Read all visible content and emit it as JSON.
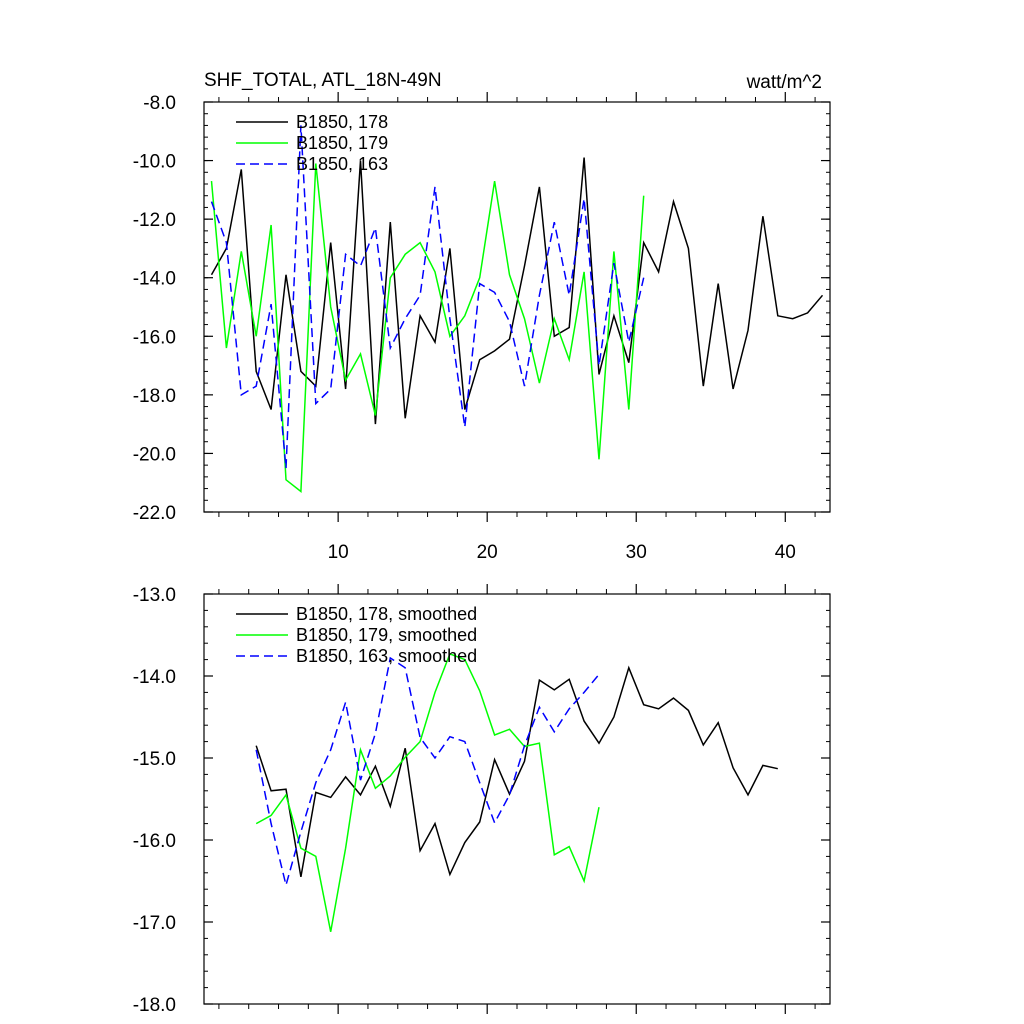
{
  "chart_data": [
    {
      "type": "line",
      "title": "SHF_TOTAL, ATL_18N-49N",
      "units": "watt/m^2",
      "xlim": [
        1,
        43
      ],
      "ylim": [
        -22,
        -8
      ],
      "yticks": [
        -8,
        -10,
        -12,
        -14,
        -16,
        -18,
        -20,
        -22
      ],
      "ytick_labels": [
        "-8.0",
        "-10.0",
        "-12.0",
        "-14.0",
        "-16.0",
        "-18.0",
        "-20.0",
        "-22.0"
      ],
      "xticks": [
        10,
        20,
        30,
        40
      ],
      "xtick_labels": [
        "10",
        "20",
        "30",
        "40"
      ],
      "legend_position": "top-left",
      "series": [
        {
          "name": "B1850, 178",
          "color": "#000000",
          "dash": "solid",
          "x": [
            1.5,
            2.5,
            3.5,
            4.5,
            5.5,
            6.5,
            7.5,
            8.5,
            9.5,
            10.5,
            11.5,
            12.5,
            13.5,
            14.5,
            15.5,
            16.5,
            17.5,
            18.5,
            19.5,
            20.5,
            21.5,
            22.5,
            23.5,
            24.5,
            25.5,
            26.5,
            27.5,
            28.5,
            29.5,
            30.5,
            31.5,
            32.5,
            33.5,
            34.5,
            35.5,
            36.5,
            37.5,
            38.5,
            39.5,
            40.5,
            41.5,
            42.5
          ],
          "values": [
            -13.9,
            -13.0,
            -10.3,
            -17.2,
            -18.5,
            -13.9,
            -17.2,
            -17.7,
            -12.8,
            -17.8,
            -10.0,
            -19.0,
            -12.1,
            -18.8,
            -15.3,
            -16.2,
            -13.0,
            -18.5,
            -16.8,
            -16.5,
            -16.1,
            -13.6,
            -10.9,
            -16.0,
            -15.7,
            -9.9,
            -17.3,
            -15.3,
            -16.9,
            -12.8,
            -13.8,
            -11.4,
            -13.0,
            -17.7,
            -14.2,
            -17.8,
            -15.8,
            -11.9,
            -15.3,
            -15.4,
            -15.2,
            -14.6
          ]
        },
        {
          "name": "B1850, 179",
          "color": "#00ff00",
          "dash": "solid",
          "x": [
            1.5,
            2.5,
            3.5,
            4.5,
            5.5,
            6.5,
            7.5,
            8.5,
            9.5,
            10.5,
            11.5,
            12.5,
            13.5,
            14.5,
            15.5,
            16.5,
            17.5,
            18.5,
            19.5,
            20.5,
            21.5,
            22.5,
            23.5,
            24.5,
            25.5,
            26.5,
            27.5,
            28.5,
            29.5,
            30.5
          ],
          "values": [
            -10.7,
            -16.4,
            -13.1,
            -16.0,
            -12.2,
            -20.9,
            -21.3,
            -10.1,
            -15.0,
            -17.5,
            -16.6,
            -18.7,
            -14.0,
            -13.2,
            -12.8,
            -13.8,
            -16.0,
            -15.3,
            -14.0,
            -10.7,
            -13.9,
            -15.4,
            -17.6,
            -15.4,
            -16.8,
            -13.8,
            -20.2,
            -13.1,
            -18.5,
            -11.2
          ]
        },
        {
          "name": "B1850, 163",
          "color": "#0000ff",
          "dash": "dashed",
          "x": [
            1.5,
            2.5,
            3.5,
            4.5,
            5.5,
            6.5,
            7.5,
            8.5,
            9.5,
            10.5,
            11.5,
            12.5,
            13.5,
            14.5,
            15.5,
            16.5,
            17.5,
            18.5,
            19.5,
            20.5,
            21.5,
            22.5,
            23.5,
            24.5,
            25.5,
            26.5,
            27.5,
            28.5,
            29.5,
            30.5
          ],
          "values": [
            -11.4,
            -12.8,
            -18.0,
            -17.7,
            -14.9,
            -20.5,
            -8.8,
            -18.3,
            -17.8,
            -13.2,
            -13.6,
            -12.3,
            -16.4,
            -15.4,
            -14.6,
            -10.9,
            -15.4,
            -19.1,
            -14.2,
            -14.5,
            -15.5,
            -17.7,
            -14.6,
            -12.1,
            -14.6,
            -11.3,
            -17.0,
            -13.5,
            -16.2,
            -14.0
          ]
        }
      ]
    },
    {
      "type": "line",
      "title": "",
      "ylim": [
        -18,
        -13
      ],
      "yticks": [
        -13,
        -14,
        -15,
        -16,
        -17,
        -18
      ],
      "ytick_labels": [
        "-13.0",
        "-14.0",
        "-15.0",
        "-16.0",
        "-17.0",
        "-18.0"
      ],
      "xlim": [
        1,
        43
      ],
      "xticks": [
        10,
        20,
        30,
        40
      ],
      "xtick_labels": [],
      "legend_position": "top-left",
      "series": [
        {
          "name": "B1850, 178, smoothed",
          "color": "#000000",
          "dash": "solid",
          "x": [
            4.5,
            5.5,
            6.5,
            7.5,
            8.5,
            9.5,
            10.5,
            11.5,
            12.5,
            13.5,
            14.5,
            15.5,
            16.5,
            17.5,
            18.5,
            19.5,
            20.5,
            21.5,
            22.5,
            23.5,
            24.5,
            25.5,
            26.5,
            27.5,
            28.5,
            29.5,
            30.5,
            31.5,
            32.5,
            33.5,
            34.5,
            35.5,
            36.5,
            37.5,
            38.5,
            39.5
          ],
          "values": [
            -14.85,
            -15.4,
            -15.38,
            -16.45,
            -15.42,
            -15.48,
            -15.23,
            -15.45,
            -15.1,
            -15.59,
            -14.88,
            -16.13,
            -15.8,
            -16.42,
            -16.03,
            -15.78,
            -15.02,
            -15.44,
            -15.04,
            -14.05,
            -14.17,
            -14.04,
            -14.55,
            -14.82,
            -14.5,
            -13.9,
            -14.35,
            -14.4,
            -14.27,
            -14.42,
            -14.84,
            -14.57,
            -15.12,
            -15.45,
            -15.09,
            -15.13
          ]
        },
        {
          "name": "B1850, 179, smoothed",
          "color": "#00ff00",
          "dash": "solid",
          "x": [
            4.5,
            5.5,
            6.5,
            7.5,
            8.5,
            9.5,
            10.5,
            11.5,
            12.5,
            13.5,
            14.5,
            15.5,
            16.5,
            17.5,
            18.5,
            19.5,
            20.5,
            21.5,
            22.5,
            23.5,
            24.5,
            25.5,
            26.5,
            27.5
          ],
          "values": [
            -15.8,
            -15.7,
            -15.45,
            -16.1,
            -16.2,
            -17.12,
            -16.1,
            -14.9,
            -15.37,
            -15.22,
            -14.99,
            -14.8,
            -14.2,
            -13.73,
            -13.8,
            -14.18,
            -14.72,
            -14.65,
            -14.86,
            -14.82,
            -16.18,
            -16.08,
            -16.5,
            -15.6
          ]
        },
        {
          "name": "B1850, 163, smoothed",
          "color": "#0000ff",
          "dash": "dashed",
          "x": [
            4.5,
            5.5,
            6.5,
            7.5,
            8.5,
            9.5,
            10.5,
            11.5,
            12.5,
            13.5,
            14.5,
            15.5,
            16.5,
            17.5,
            18.5,
            19.5,
            20.5,
            21.5,
            22.5,
            23.5,
            24.5,
            25.5,
            26.5,
            27.5
          ],
          "values": [
            -14.9,
            -15.8,
            -16.55,
            -15.9,
            -15.3,
            -14.9,
            -14.32,
            -15.27,
            -14.7,
            -13.78,
            -13.9,
            -14.75,
            -15.0,
            -14.74,
            -14.8,
            -15.3,
            -15.79,
            -15.45,
            -14.85,
            -14.38,
            -14.68,
            -14.4,
            -14.2,
            -13.98
          ]
        }
      ]
    }
  ]
}
